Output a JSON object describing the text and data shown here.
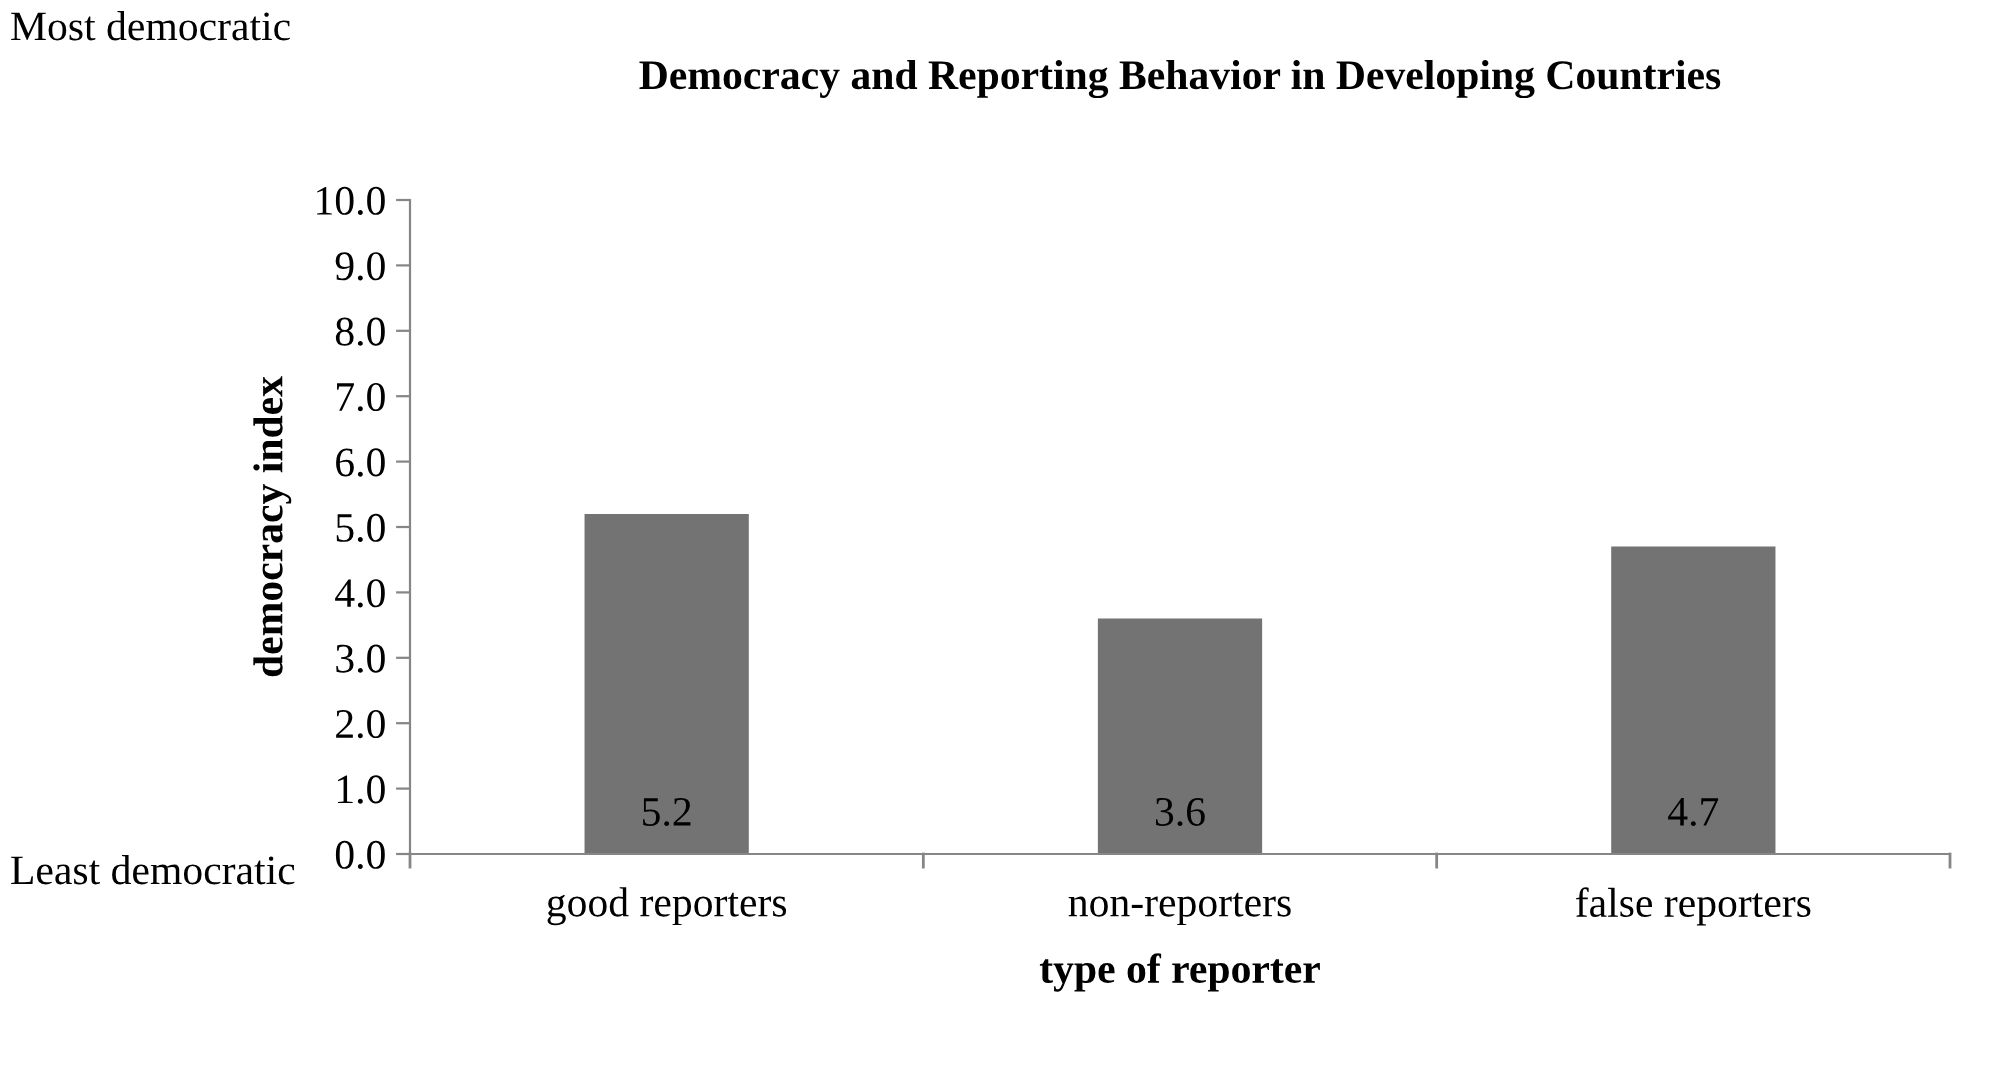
{
  "chart_data": {
    "type": "bar",
    "title": "Democracy and Reporting Behavior in Developing Countries",
    "xlabel": "type of reporter",
    "ylabel": "democracy index",
    "categories": [
      "good reporters",
      "non-reporters",
      "false reporters"
    ],
    "values": [
      5.2,
      3.6,
      4.7
    ],
    "color": "#737373",
    "data_labels": true,
    "ylim": [
      0,
      10
    ],
    "yticks": [
      {
        "value": 0,
        "label": "0.0"
      },
      {
        "value": 1,
        "label": "1.0"
      },
      {
        "value": 2,
        "label": "2.0"
      },
      {
        "value": 3,
        "label": "3.0"
      },
      {
        "value": 4,
        "label": "4.0"
      },
      {
        "value": 5,
        "label": "5.0"
      },
      {
        "value": 6,
        "label": "6.0"
      },
      {
        "value": 7,
        "label": "7.0"
      },
      {
        "value": 8,
        "label": "8.0"
      },
      {
        "value": 9,
        "label": "9.0"
      },
      {
        "value": 10,
        "label": "10.0"
      }
    ],
    "annotations": [
      "Most democratic",
      "Least democratic"
    ],
    "grid": false,
    "legend": false
  }
}
